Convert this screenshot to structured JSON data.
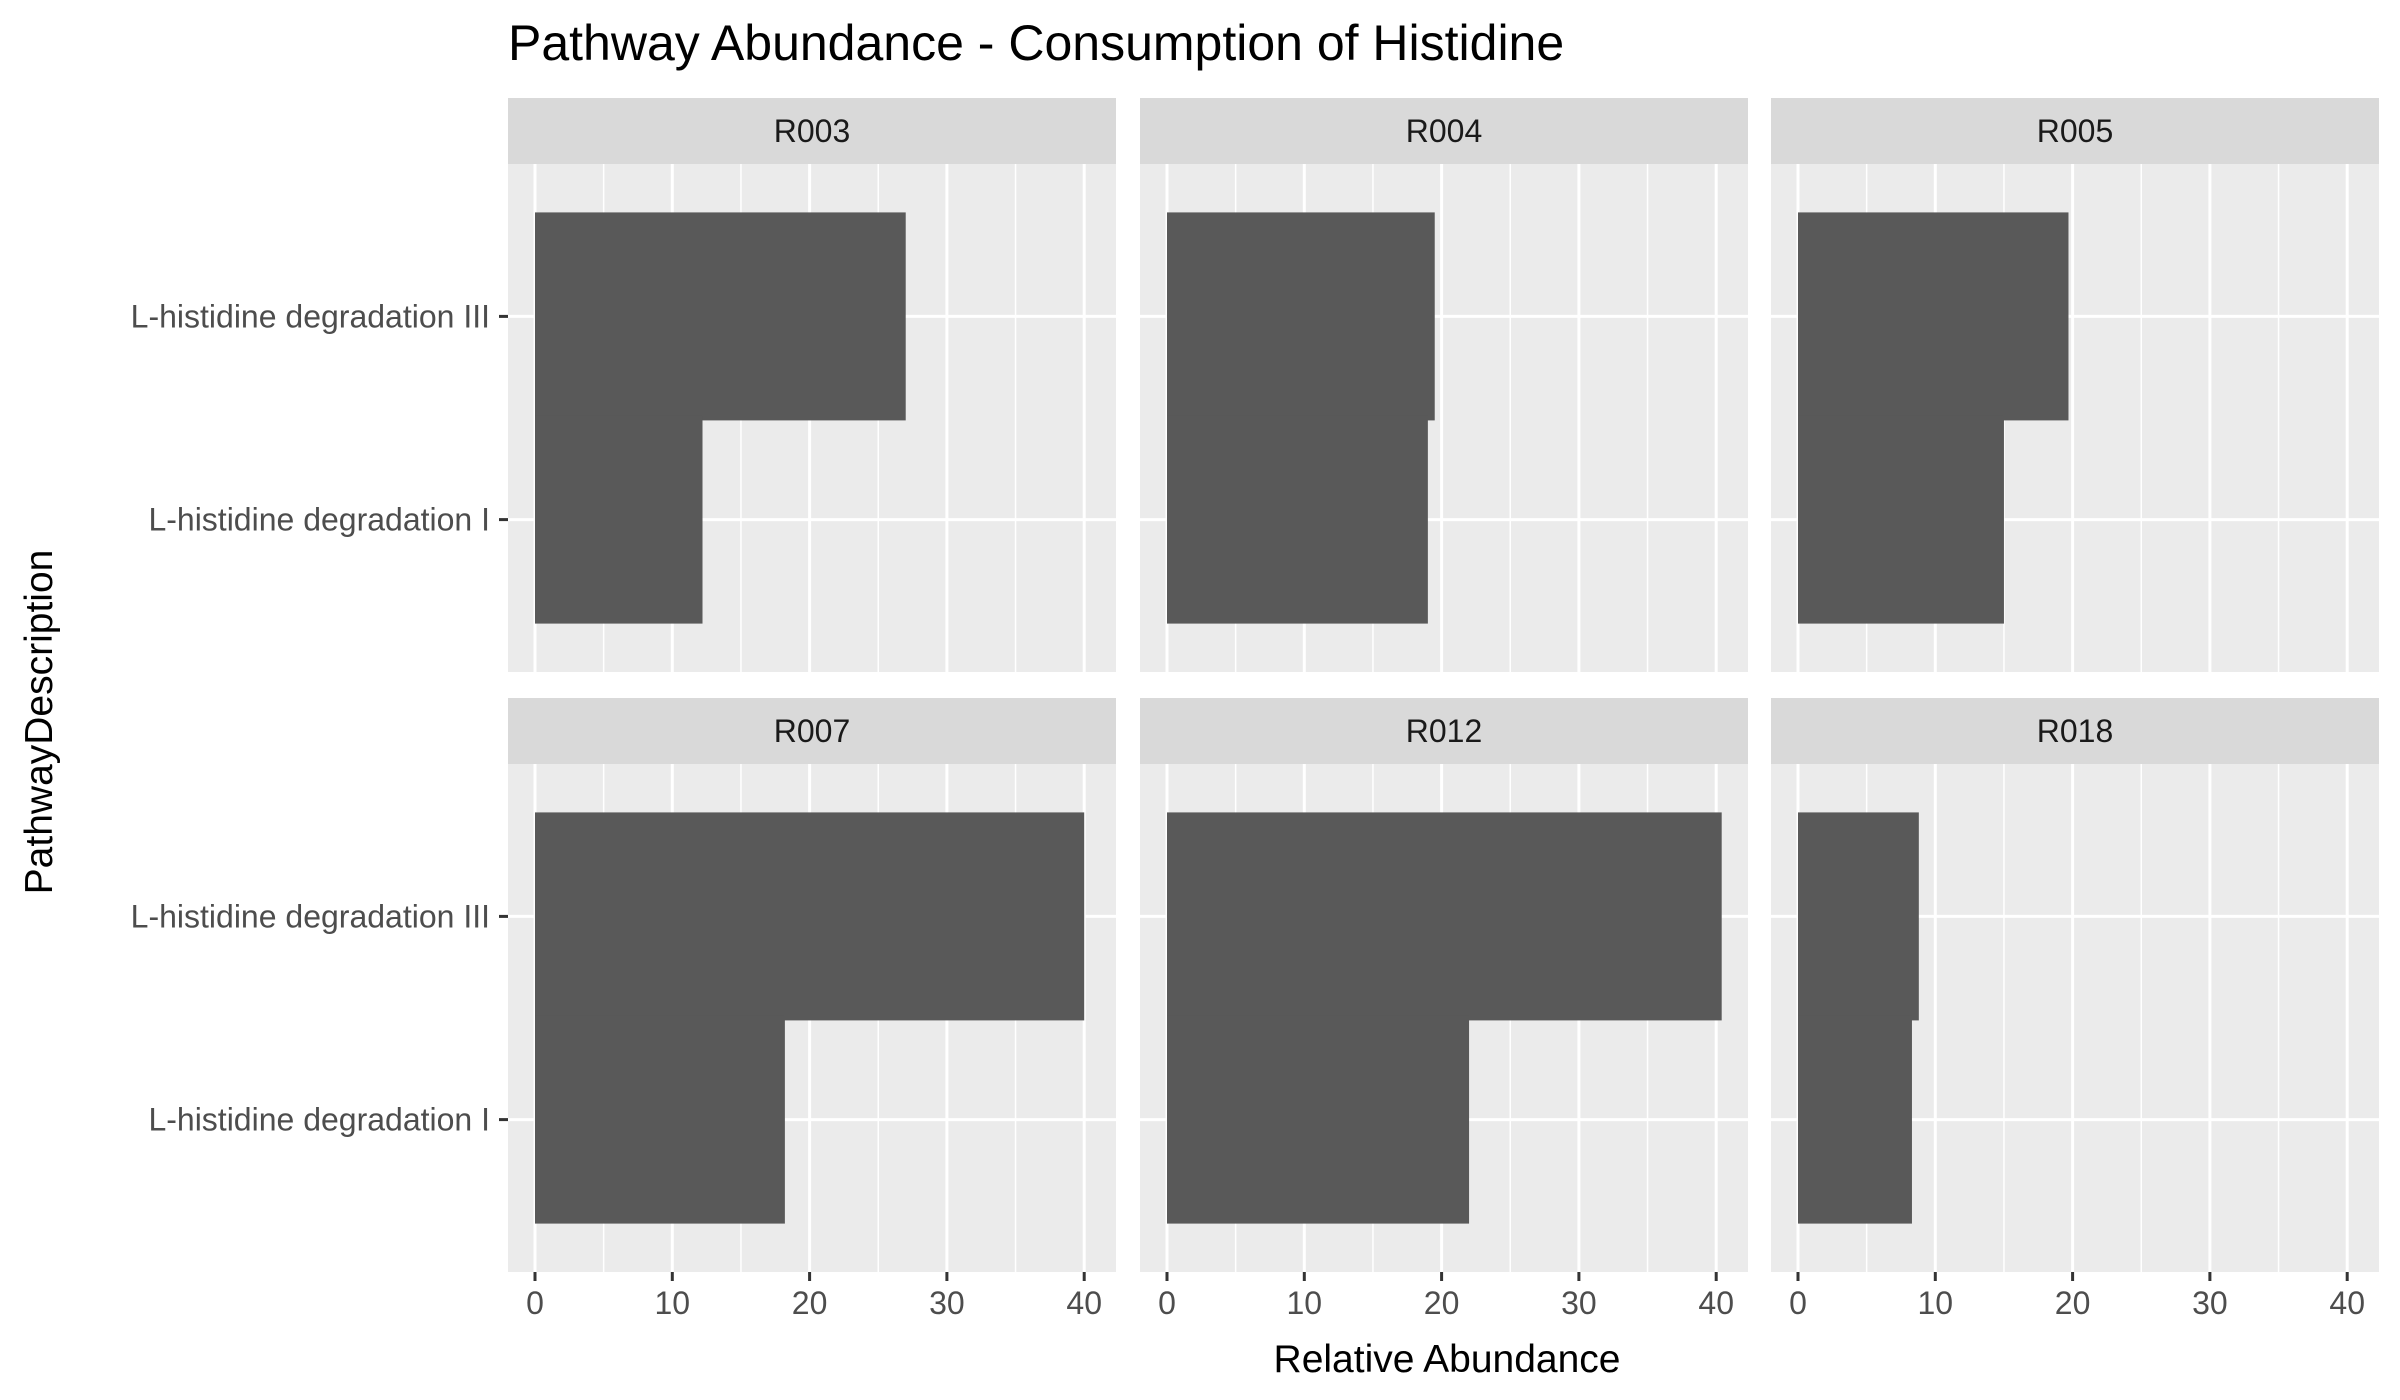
{
  "chart_data": {
    "type": "bar",
    "orientation": "horizontal",
    "title": "Pathway Abundance - Consumption of Histidine",
    "xlabel": "Relative Abundance",
    "ylabel": "PathwayDescription",
    "xlim": [
      0,
      40
    ],
    "x_ticks": [
      0,
      10,
      20,
      30,
      40
    ],
    "categories": [
      "L-histidine degradation III",
      "L-histidine degradation I"
    ],
    "grid": true,
    "facets": [
      {
        "name": "R003",
        "values": [
          27.0,
          12.2
        ]
      },
      {
        "name": "R004",
        "values": [
          19.5,
          19.0
        ]
      },
      {
        "name": "R005",
        "values": [
          19.7,
          15.0
        ]
      },
      {
        "name": "R007",
        "values": [
          40.0,
          18.2
        ]
      },
      {
        "name": "R012",
        "values": [
          40.4,
          22.0
        ]
      },
      {
        "name": "R018",
        "values": [
          8.8,
          8.3
        ]
      }
    ],
    "colors": {
      "bar": "#595959",
      "panel": "#ebebeb",
      "strip": "#d9d9d9",
      "grid": "#ffffff"
    }
  }
}
